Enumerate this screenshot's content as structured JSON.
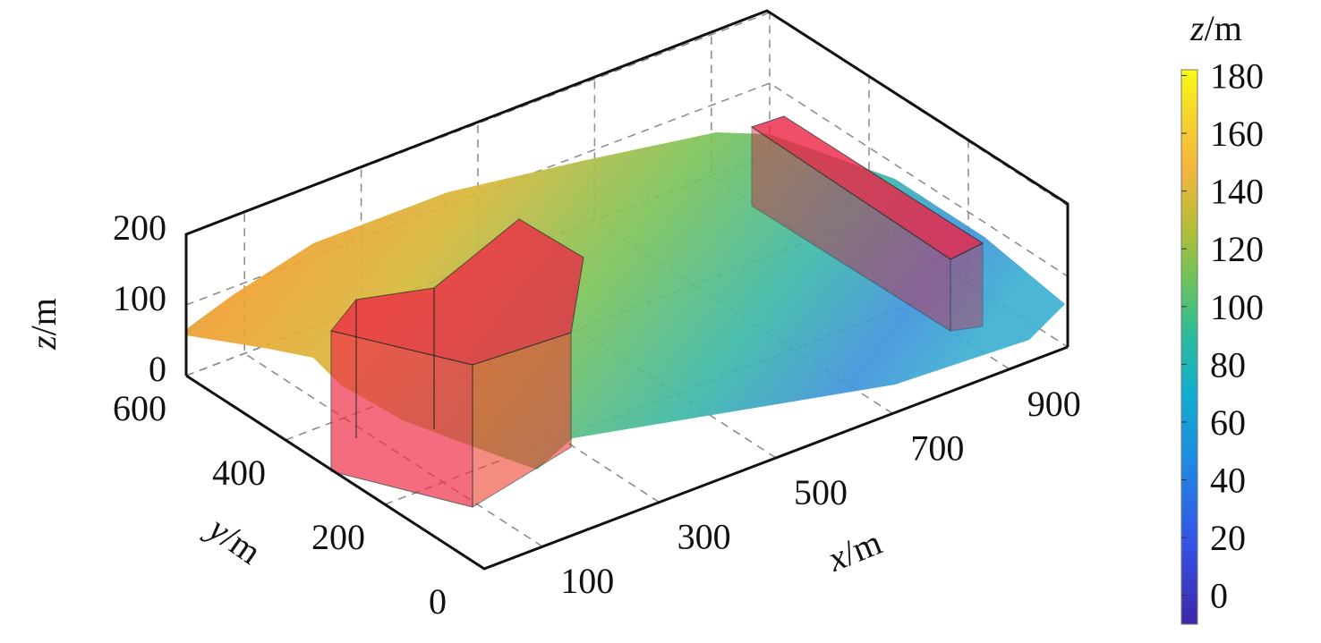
{
  "chart_data": {
    "type": "surface3d",
    "title": "",
    "xlabel": "x/m",
    "ylabel": "y/m",
    "zlabel": "z/m",
    "x_ticks": [
      100,
      300,
      500,
      700,
      900
    ],
    "y_ticks": [
      0,
      200,
      400,
      600
    ],
    "z_ticks": [
      0,
      100,
      200
    ],
    "xlim": [
      0,
      1000
    ],
    "ylim": [
      0,
      600
    ],
    "zlim": [
      0,
      200
    ],
    "grid": true,
    "colorbar": {
      "label": "z/m",
      "ticks": [
        0,
        20,
        40,
        60,
        80,
        100,
        120,
        140,
        160,
        180
      ],
      "range": [
        -10,
        182
      ],
      "colormap": [
        "#3e26a8",
        "#2f64e0",
        "#1597d9",
        "#22b0ab",
        "#4dc16d",
        "#9fc135",
        "#e0b43a",
        "#f9c628",
        "#f8e81e"
      ]
    },
    "overlays": [
      {
        "name": "prism-1",
        "color": "#ee2244"
      },
      {
        "name": "prism-2",
        "color": "#ee2244"
      }
    ]
  }
}
